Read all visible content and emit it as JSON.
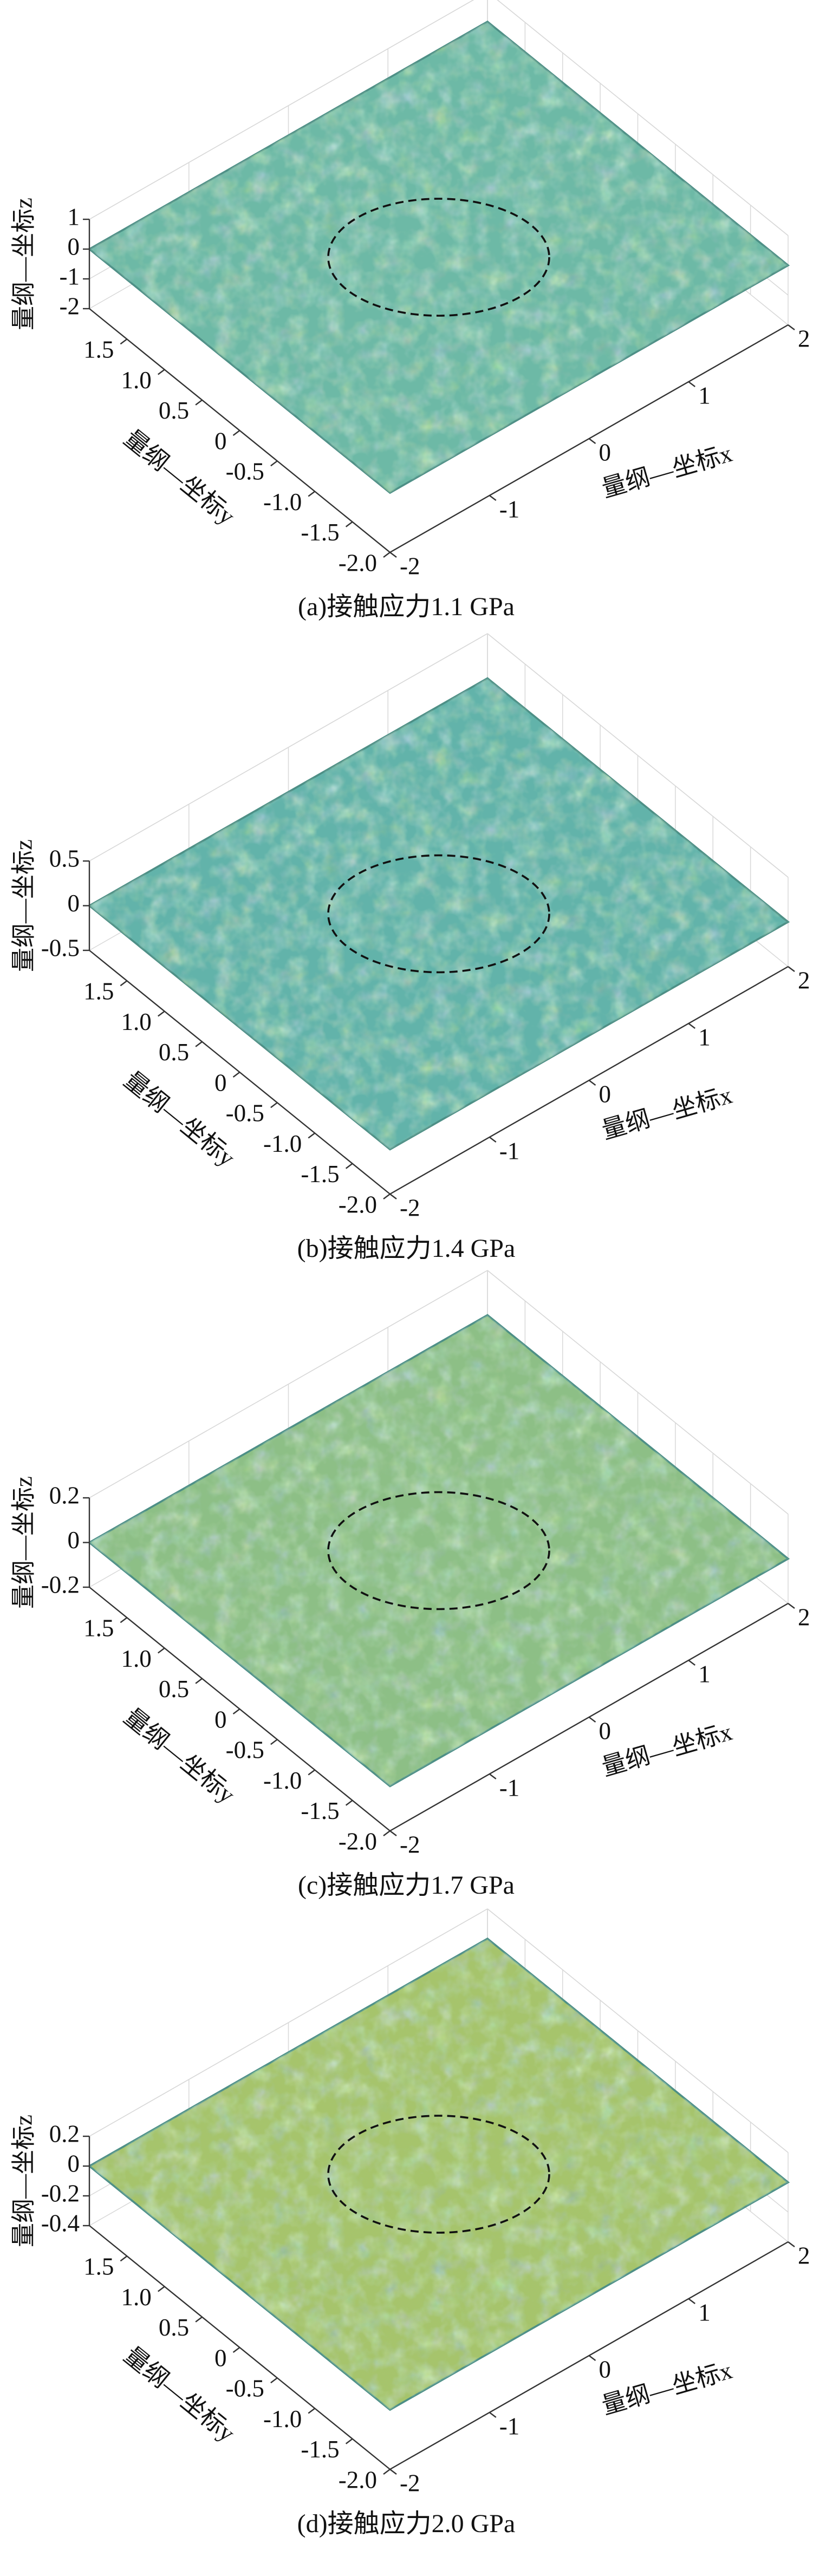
{
  "chart_data": [
    {
      "type": "surface",
      "title": "(a)接触应力1.1 GPa",
      "xlabel": "量纲—坐标x",
      "ylabel": "量纲—坐标y",
      "zlabel": "量纲—坐标z",
      "xlim": [
        -2,
        2
      ],
      "ylim": [
        -2,
        2
      ],
      "zlim": [
        -2,
        1
      ],
      "xticks": [
        -2,
        -1,
        0,
        1,
        2
      ],
      "yticks": [
        {
          "value": -2,
          "label": "-2.0"
        },
        -1.5,
        {
          "value": -1,
          "label": "-1.0"
        },
        -0.5,
        0,
        0.5,
        {
          "value": 1,
          "label": "1.0"
        },
        1.5
      ],
      "zticks": [
        -2,
        -1,
        0,
        1
      ],
      "color": "#6db9a6",
      "grid": true
    },
    {
      "type": "surface",
      "title": "(b)接触应力1.4 GPa",
      "xlabel": "量纲—坐标x",
      "ylabel": "量纲—坐标y",
      "zlabel": "量纲—坐标z",
      "xlim": [
        -2,
        2
      ],
      "ylim": [
        -2,
        2
      ],
      "zlim": [
        -0.5,
        0.5
      ],
      "xticks": [
        -2,
        -1,
        0,
        1,
        2
      ],
      "yticks": [
        {
          "value": -2,
          "label": "-2.0"
        },
        -1.5,
        {
          "value": -1,
          "label": "-1.0"
        },
        -0.5,
        0,
        0.5,
        {
          "value": 1,
          "label": "1.0"
        },
        1.5
      ],
      "zticks": [
        -0.5,
        0,
        0.5
      ],
      "color": "#62b3aa",
      "grid": true
    },
    {
      "type": "surface",
      "title": "(c)接触应力1.7 GPa",
      "xlabel": "量纲—坐标x",
      "ylabel": "量纲—坐标y",
      "zlabel": "量纲—坐标z",
      "xlim": [
        -2,
        2
      ],
      "ylim": [
        -2,
        2
      ],
      "zlim": [
        -0.2,
        0.2
      ],
      "xticks": [
        -2,
        -1,
        0,
        1,
        2
      ],
      "yticks": [
        {
          "value": -2,
          "label": "-2.0"
        },
        -1.5,
        {
          "value": -1,
          "label": "-1.0"
        },
        -0.5,
        0,
        0.5,
        {
          "value": 1,
          "label": "1.0"
        },
        1.5
      ],
      "zticks": [
        -0.2,
        0,
        0.2
      ],
      "color": "#8dbf86",
      "grid": true
    },
    {
      "type": "surface",
      "title": "(d)接触应力2.0 GPa",
      "xlabel": "量纲—坐标x",
      "ylabel": "量纲—坐标y",
      "zlabel": "量纲—坐标z",
      "xlim": [
        -2,
        2
      ],
      "ylim": [
        -2,
        2
      ],
      "zlim": [
        -0.4,
        0.2
      ],
      "xticks": [
        -2,
        -1,
        0,
        1,
        2
      ],
      "yticks": [
        {
          "value": -2,
          "label": "-2.0"
        },
        -1.5,
        {
          "value": -1,
          "label": "-1.0"
        },
        -0.5,
        0,
        0.5,
        {
          "value": 1,
          "label": "1.0"
        },
        1.5
      ],
      "zticks": [
        -0.4,
        -0.2,
        0,
        0.2
      ],
      "color": "#a6c46c",
      "grid": true
    }
  ]
}
